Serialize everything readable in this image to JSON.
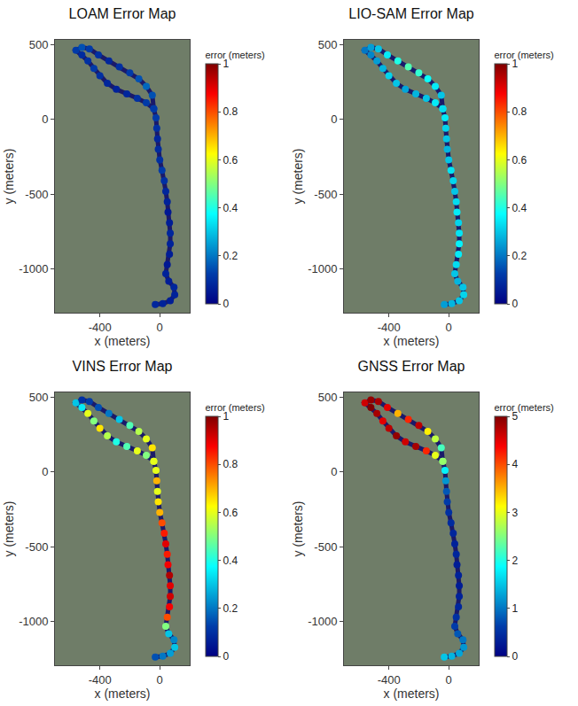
{
  "chart_data": [
    {
      "type": "scatter",
      "title": "LOAM Error Map",
      "x_label": "x (meters)",
      "y_label": "y (meters)",
      "colorbar_title": "error (meters)",
      "clim": [
        0,
        1
      ],
      "cticks": [
        0,
        0.2,
        0.4,
        0.6,
        0.8,
        1
      ],
      "xlim": [
        -700,
        200
      ],
      "ylim": [
        -1290,
        530
      ],
      "xticks": [
        -400,
        0
      ],
      "yticks": [
        -1000,
        -500,
        0,
        500
      ],
      "grid": false,
      "marker": "circle",
      "x": [
        -30,
        20,
        70,
        100,
        95,
        60,
        40,
        50,
        65,
        70,
        70,
        65,
        55,
        50,
        40,
        30,
        15,
        0,
        -10,
        -15,
        -20,
        -25,
        -40,
        -90,
        -150,
        -220,
        -290,
        -350,
        -400,
        -440,
        -480,
        -520,
        -560,
        -520,
        -470,
        -410,
        -340,
        -270,
        -200,
        -140,
        -90,
        -50,
        -40
      ],
      "y": [
        -1235,
        -1230,
        -1210,
        -1170,
        -1120,
        -1080,
        -1030,
        -970,
        -900,
        -830,
        -760,
        -690,
        -620,
        -550,
        -480,
        -410,
        -340,
        -270,
        -200,
        -130,
        -60,
        10,
        70,
        110,
        140,
        170,
        200,
        240,
        290,
        340,
        390,
        430,
        460,
        480,
        470,
        430,
        390,
        350,
        310,
        270,
        220,
        160,
        70
      ],
      "error": [
        0.08,
        0.07,
        0.06,
        0.07,
        0.08,
        0.06,
        0.07,
        0.05,
        0.06,
        0.07,
        0.08,
        0.06,
        0.05,
        0.07,
        0.08,
        0.1,
        0.12,
        0.1,
        0.09,
        0.08,
        0.1,
        0.12,
        0.15,
        0.12,
        0.1,
        0.08,
        0.07,
        0.08,
        0.1,
        0.12,
        0.1,
        0.09,
        0.12,
        0.15,
        0.12,
        0.1,
        0.08,
        0.1,
        0.12,
        0.15,
        0.18,
        0.15,
        0.12
      ]
    },
    {
      "type": "scatter",
      "title": "LIO-SAM Error Map",
      "x_label": "x (meters)",
      "y_label": "y (meters)",
      "colorbar_title": "error (meters)",
      "clim": [
        0,
        1
      ],
      "cticks": [
        0,
        0.2,
        0.4,
        0.6,
        0.8,
        1
      ],
      "xlim": [
        -700,
        200
      ],
      "ylim": [
        -1290,
        530
      ],
      "xticks": [
        -400,
        0
      ],
      "yticks": [
        -1000,
        -500,
        0,
        500
      ],
      "grid": false,
      "marker": "circle",
      "x": [
        -30,
        20,
        70,
        100,
        95,
        60,
        40,
        50,
        65,
        70,
        70,
        65,
        55,
        50,
        40,
        30,
        15,
        0,
        -10,
        -15,
        -20,
        -25,
        -40,
        -90,
        -150,
        -220,
        -290,
        -350,
        -400,
        -440,
        -480,
        -520,
        -560,
        -520,
        -470,
        -410,
        -340,
        -270,
        -200,
        -140,
        -90,
        -50,
        -40
      ],
      "y": [
        -1235,
        -1230,
        -1210,
        -1170,
        -1120,
        -1080,
        -1030,
        -970,
        -900,
        -830,
        -760,
        -690,
        -620,
        -550,
        -480,
        -410,
        -340,
        -270,
        -200,
        -130,
        -60,
        10,
        70,
        110,
        140,
        170,
        200,
        240,
        290,
        340,
        390,
        430,
        460,
        480,
        470,
        430,
        390,
        350,
        310,
        270,
        220,
        160,
        70
      ],
      "error": [
        0.25,
        0.28,
        0.3,
        0.32,
        0.3,
        0.28,
        0.3,
        0.33,
        0.35,
        0.36,
        0.34,
        0.32,
        0.35,
        0.33,
        0.3,
        0.32,
        0.34,
        0.3,
        0.28,
        0.3,
        0.32,
        0.35,
        0.38,
        0.35,
        0.3,
        0.28,
        0.26,
        0.3,
        0.32,
        0.28,
        0.25,
        0.22,
        0.2,
        0.25,
        0.3,
        0.35,
        0.4,
        0.45,
        0.42,
        0.38,
        0.35,
        0.3,
        0.33
      ]
    },
    {
      "type": "scatter",
      "title": "VINS Error Map",
      "x_label": "x (meters)",
      "y_label": "y (meters)",
      "colorbar_title": "error (meters)",
      "clim": [
        0,
        1
      ],
      "cticks": [
        0,
        0.2,
        0.4,
        0.6,
        0.8,
        1
      ],
      "xlim": [
        -700,
        200
      ],
      "ylim": [
        -1290,
        530
      ],
      "xticks": [
        -400,
        0
      ],
      "yticks": [
        -1000,
        -500,
        0,
        500
      ],
      "grid": false,
      "marker": "circle",
      "x": [
        -30,
        20,
        70,
        100,
        95,
        60,
        40,
        50,
        65,
        70,
        70,
        65,
        55,
        50,
        40,
        30,
        15,
        0,
        -10,
        -15,
        -20,
        -25,
        -40,
        -90,
        -150,
        -220,
        -290,
        -350,
        -400,
        -440,
        -480,
        -520,
        -560,
        -520,
        -470,
        -410,
        -340,
        -270,
        -200,
        -140,
        -90,
        -50,
        -40
      ],
      "y": [
        -1235,
        -1230,
        -1210,
        -1170,
        -1120,
        -1080,
        -1030,
        -970,
        -900,
        -830,
        -760,
        -690,
        -620,
        -550,
        -480,
        -410,
        -340,
        -270,
        -200,
        -130,
        -60,
        10,
        70,
        110,
        140,
        170,
        200,
        240,
        290,
        340,
        390,
        430,
        460,
        480,
        470,
        430,
        390,
        350,
        310,
        270,
        220,
        160,
        70
      ],
      "error": [
        0.15,
        0.2,
        0.25,
        0.3,
        0.22,
        0.3,
        0.5,
        0.8,
        0.88,
        0.92,
        0.9,
        0.95,
        0.88,
        0.85,
        0.9,
        0.85,
        0.8,
        0.7,
        0.65,
        0.6,
        0.7,
        0.6,
        0.55,
        0.5,
        0.6,
        0.45,
        0.4,
        0.55,
        0.65,
        0.5,
        0.6,
        0.35,
        0.3,
        0.1,
        0.12,
        0.15,
        0.2,
        0.3,
        0.45,
        0.55,
        0.6,
        0.65,
        0.6
      ]
    },
    {
      "type": "scatter",
      "title": "GNSS Error Map",
      "x_label": "x (meters)",
      "y_label": "y (meters)",
      "colorbar_title": "error (meters)",
      "clim": [
        0,
        5
      ],
      "cticks": [
        0,
        1,
        2,
        3,
        4,
        5
      ],
      "xlim": [
        -700,
        200
      ],
      "ylim": [
        -1290,
        530
      ],
      "xticks": [
        -400,
        0
      ],
      "yticks": [
        -1000,
        -500,
        0,
        500
      ],
      "grid": false,
      "marker": "circle",
      "x": [
        -30,
        20,
        70,
        100,
        95,
        60,
        40,
        50,
        65,
        70,
        70,
        65,
        55,
        50,
        40,
        30,
        15,
        0,
        -10,
        -15,
        -20,
        -25,
        -40,
        -90,
        -150,
        -220,
        -290,
        -350,
        -400,
        -440,
        -480,
        -520,
        -560,
        -520,
        -470,
        -410,
        -340,
        -270,
        -200,
        -140,
        -90,
        -50,
        -40
      ],
      "y": [
        -1235,
        -1230,
        -1210,
        -1170,
        -1120,
        -1080,
        -1030,
        -970,
        -900,
        -830,
        -760,
        -690,
        -620,
        -550,
        -480,
        -410,
        -340,
        -270,
        -200,
        -130,
        -60,
        10,
        70,
        110,
        140,
        170,
        200,
        240,
        290,
        340,
        390,
        430,
        460,
        480,
        470,
        430,
        390,
        350,
        310,
        270,
        220,
        160,
        70
      ],
      "error": [
        1.5,
        1.4,
        1.3,
        1.2,
        1.0,
        0.8,
        0.6,
        0.5,
        0.4,
        0.35,
        0.3,
        0.35,
        0.3,
        0.4,
        0.35,
        0.4,
        0.45,
        0.5,
        0.6,
        0.8,
        1.2,
        1.8,
        2.5,
        3.0,
        4.2,
        4.8,
        4.6,
        4.9,
        4.7,
        4.5,
        4.8,
        5.0,
        4.6,
        4.9,
        4.8,
        4.5,
        3.5,
        4.2,
        4.7,
        3.2,
        2.8,
        2.2,
        2.6
      ]
    }
  ]
}
